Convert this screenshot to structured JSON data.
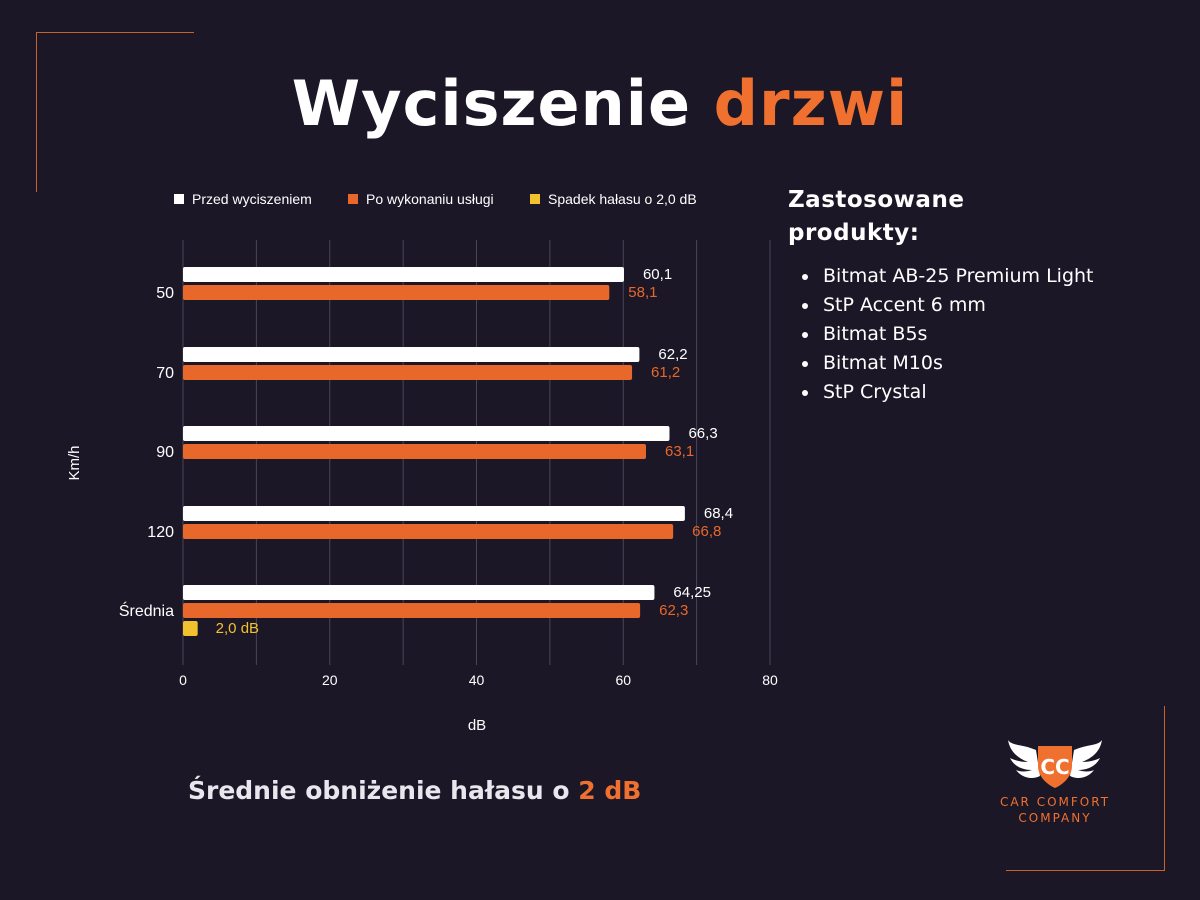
{
  "title": {
    "part1": "Wyciszenie",
    "part2": "drzwi"
  },
  "colors": {
    "before": "#ffffff",
    "after": "#e8672a",
    "drop": "#f2c12e",
    "accent": "#f07030",
    "background": "#1b1726"
  },
  "chart_data": {
    "type": "bar",
    "orientation": "horizontal",
    "categories": [
      "50",
      "70",
      "90",
      "120",
      "Średnia"
    ],
    "series": [
      {
        "name": "Przed wyciszeniem",
        "values": [
          60.1,
          62.2,
          66.3,
          68.4,
          64.25
        ],
        "labels": [
          "60,1",
          "62,2",
          "66,3",
          "68,4",
          "64,25"
        ]
      },
      {
        "name": "Po wykonaniu usługi",
        "values": [
          58.1,
          61.2,
          63.1,
          66.8,
          62.3
        ],
        "labels": [
          "58,1",
          "61,2",
          "63,1",
          "66,8",
          "62,3"
        ]
      },
      {
        "name": "Spadek hałasu o 2,0 dB",
        "values": [
          null,
          null,
          null,
          null,
          2.0
        ],
        "labels": [
          "",
          "",
          "",
          "",
          "2,0 dB"
        ]
      }
    ],
    "xlabel": "dB",
    "ylabel": "Km/h",
    "xlim": [
      0,
      80
    ],
    "xticks": [
      0,
      20,
      40,
      60,
      80
    ],
    "grid": true,
    "legend": "top"
  },
  "products": {
    "title_line1": "Zastosowane",
    "title_line2": "produkty:",
    "items": [
      "Bitmat AB-25 Premium Light",
      "StP Accent 6 mm",
      "Bitmat B5s",
      "Bitmat M10s",
      "StP Crystal"
    ]
  },
  "summary": {
    "text": "Średnie obniżenie hałasu o",
    "highlight": "2 dB"
  },
  "logo": {
    "monogram": "CC",
    "line1": "CAR COMFORT",
    "line2": "COMPANY"
  }
}
